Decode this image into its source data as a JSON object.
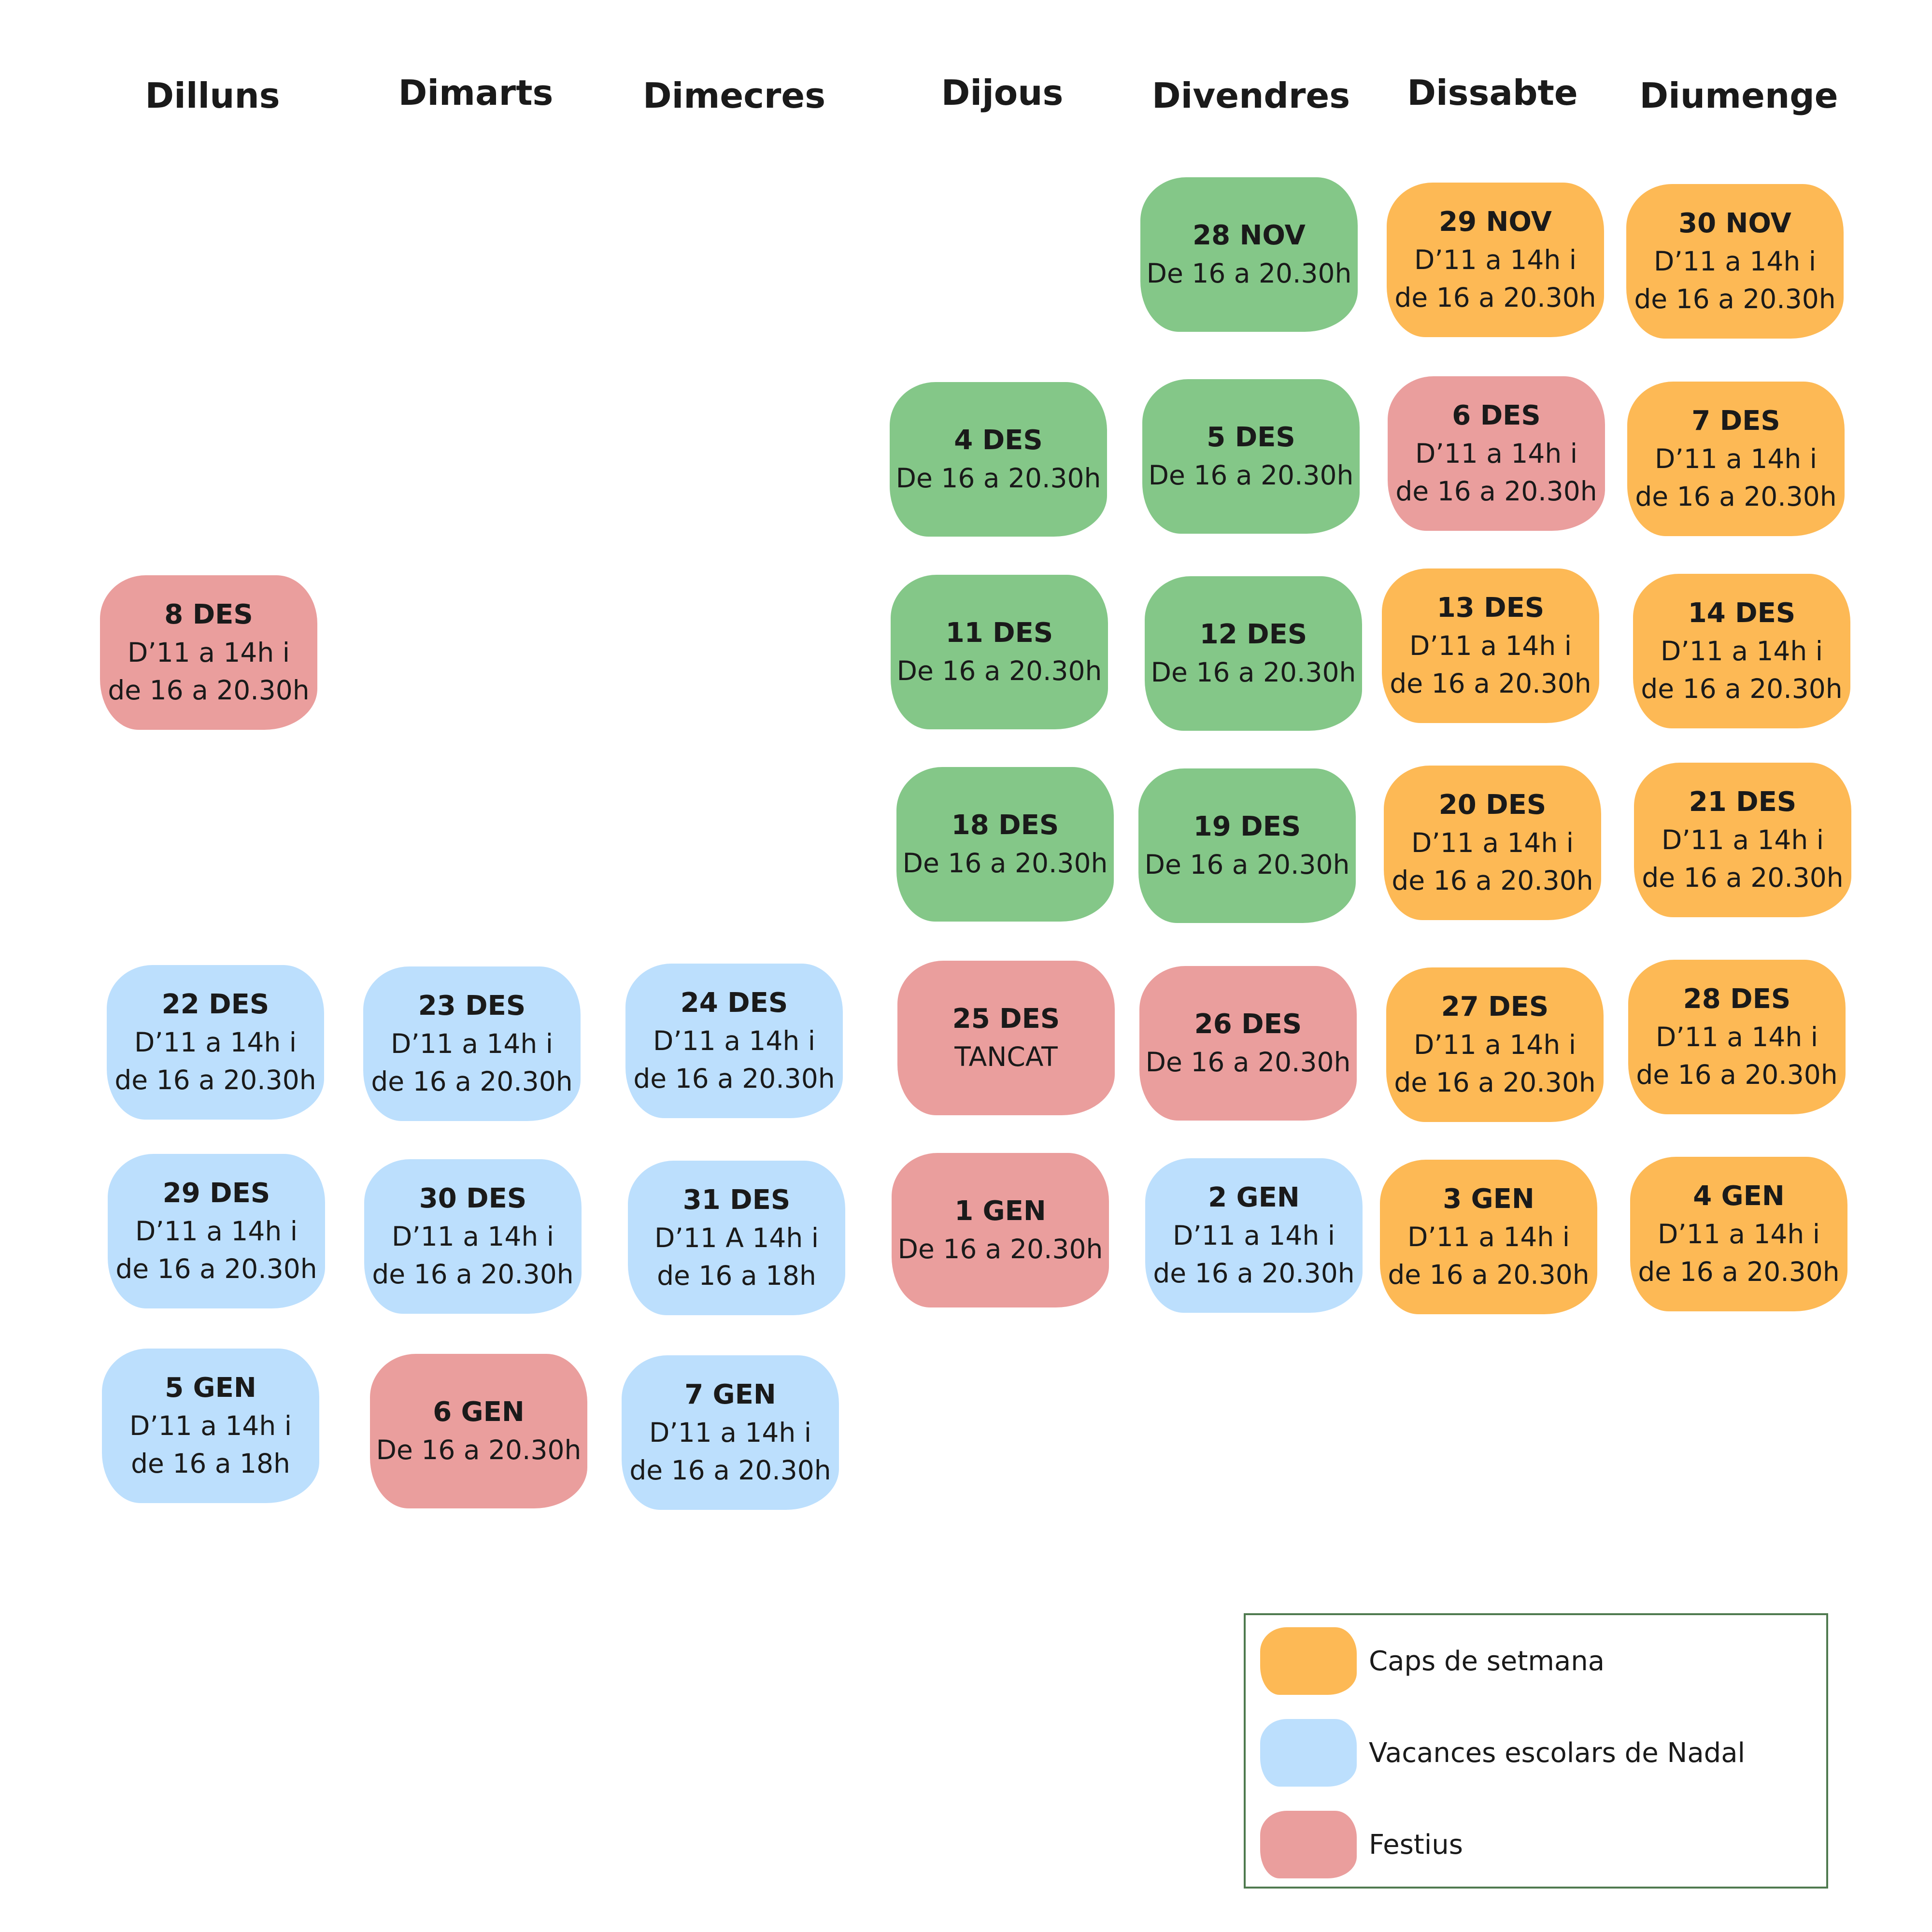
{
  "colors": {
    "green": "#84c788",
    "orange": "#fdb955",
    "red": "#ea9e9d",
    "blue": "#bcdffd",
    "legend_border": "#4f7a4f"
  },
  "weekdays": [
    "Dilluns",
    "Dimarts",
    "Dimecres",
    "Dijous",
    "Divendres",
    "Dissabte",
    "Diumenge"
  ],
  "rows": [
    [
      null,
      null,
      null,
      null,
      {
        "date": "28 NOV",
        "lines": [
          "De 16 a 20.30h"
        ],
        "color": "green"
      },
      {
        "date": "29 NOV",
        "lines": [
          "D’11 a 14h i",
          "de 16 a 20.30h"
        ],
        "color": "orange"
      },
      {
        "date": "30 NOV",
        "lines": [
          "D’11 a 14h i",
          "de 16 a 20.30h"
        ],
        "color": "orange"
      }
    ],
    [
      null,
      null,
      null,
      {
        "date": "4 DES",
        "lines": [
          "De 16 a 20.30h"
        ],
        "color": "green"
      },
      {
        "date": "5 DES",
        "lines": [
          "De 16 a 20.30h"
        ],
        "color": "green"
      },
      {
        "date": "6 DES",
        "lines": [
          "D’11 a 14h i",
          "de 16 a 20.30h"
        ],
        "color": "red"
      },
      {
        "date": "7 DES",
        "lines": [
          "D’11 a 14h i",
          "de 16 a 20.30h"
        ],
        "color": "orange"
      }
    ],
    [
      {
        "date": "8 DES",
        "lines": [
          "D’11 a 14h i",
          "de 16 a 20.30h"
        ],
        "color": "red"
      },
      null,
      null,
      {
        "date": "11 DES",
        "lines": [
          "De 16 a 20.30h"
        ],
        "color": "green"
      },
      {
        "date": "12 DES",
        "lines": [
          "De 16 a 20.30h"
        ],
        "color": "green"
      },
      {
        "date": "13 DES",
        "lines": [
          "D’11 a 14h i",
          "de 16 a 20.30h"
        ],
        "color": "orange"
      },
      {
        "date": "14 DES",
        "lines": [
          "D’11 a 14h i",
          "de 16 a 20.30h"
        ],
        "color": "orange"
      }
    ],
    [
      null,
      null,
      null,
      {
        "date": "18 DES",
        "lines": [
          "De 16 a 20.30h"
        ],
        "color": "green"
      },
      {
        "date": "19 DES",
        "lines": [
          "De 16 a 20.30h"
        ],
        "color": "green"
      },
      {
        "date": "20 DES",
        "lines": [
          "D’11 a 14h i",
          "de 16 a 20.30h"
        ],
        "color": "orange"
      },
      {
        "date": "21 DES",
        "lines": [
          "D’11 a 14h i",
          "de 16 a 20.30h"
        ],
        "color": "orange"
      }
    ],
    [
      {
        "date": "22 DES",
        "lines": [
          "D’11 a 14h i",
          "de 16 a 20.30h"
        ],
        "color": "blue"
      },
      {
        "date": "23 DES",
        "lines": [
          "D’11 a 14h i",
          "de 16 a 20.30h"
        ],
        "color": "blue"
      },
      {
        "date": "24 DES",
        "lines": [
          "D’11 a 14h i",
          "de 16 a 20.30h"
        ],
        "color": "blue"
      },
      {
        "date": "25 DES",
        "lines": [
          "TANCAT"
        ],
        "color": "red"
      },
      {
        "date": "26 DES",
        "lines": [
          "De 16 a 20.30h"
        ],
        "color": "red"
      },
      {
        "date": "27 DES",
        "lines": [
          "D’11 a 14h i",
          "de 16 a 20.30h"
        ],
        "color": "orange"
      },
      {
        "date": "28 DES",
        "lines": [
          "D’11 a 14h i",
          "de 16 a 20.30h"
        ],
        "color": "orange"
      }
    ],
    [
      {
        "date": "29 DES",
        "lines": [
          "D’11 a 14h i",
          "de 16 a 20.30h"
        ],
        "color": "blue"
      },
      {
        "date": "30 DES",
        "lines": [
          "D’11 a 14h i",
          "de 16 a 20.30h"
        ],
        "color": "blue"
      },
      {
        "date": "31 DES",
        "lines": [
          "D’11 A 14h i",
          "de 16 a 18h"
        ],
        "color": "blue"
      },
      {
        "date": "1 GEN",
        "lines": [
          "De 16 a 20.30h"
        ],
        "color": "red"
      },
      {
        "date": "2 GEN",
        "lines": [
          "D’11 a 14h i",
          "de 16 a 20.30h"
        ],
        "color": "blue"
      },
      {
        "date": "3 GEN",
        "lines": [
          "D’11 a 14h i",
          "de 16 a 20.30h"
        ],
        "color": "orange"
      },
      {
        "date": "4 GEN",
        "lines": [
          "D’11 a 14h i",
          "de 16 a 20.30h"
        ],
        "color": "orange"
      }
    ],
    [
      {
        "date": "5 GEN",
        "lines": [
          "D’11 a 14h i",
          "de 16 a 18h"
        ],
        "color": "blue"
      },
      {
        "date": "6 GEN",
        "lines": [
          "De 16 a 20.30h"
        ],
        "color": "red"
      },
      {
        "date": "7 GEN",
        "lines": [
          "D’11 a 14h i",
          "de 16 a 20.30h"
        ],
        "color": "blue"
      },
      null,
      null,
      null,
      null
    ]
  ],
  "legend": [
    {
      "label": "Caps de setmana",
      "color": "orange"
    },
    {
      "label": "Vacances escolars de Nadal",
      "color": "blue"
    },
    {
      "label": "Festius",
      "color": "red"
    }
  ]
}
